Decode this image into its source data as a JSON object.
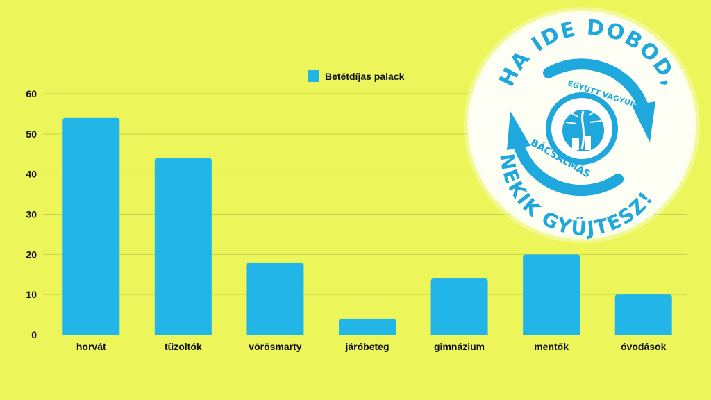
{
  "colors": {
    "background": "#ecf65a",
    "bar": "#22b6e8",
    "grid": "#c9d24a",
    "logo_blue": "#1fa8dd",
    "logo_white": "#ffffff"
  },
  "chart_data": {
    "type": "bar",
    "title": "",
    "xlabel": "",
    "ylabel": "",
    "categories": [
      "horvát",
      "tűzoltók",
      "vörösmarty",
      "járóbeteg",
      "gimnázium",
      "mentők",
      "óvodások"
    ],
    "series": [
      {
        "name": "Betétdíjas palack",
        "values": [
          54,
          44,
          18,
          4,
          14,
          20,
          10
        ]
      }
    ],
    "ylim": [
      0,
      60
    ],
    "yticks": [
      0,
      10,
      20,
      30,
      40,
      50,
      60
    ],
    "grid": true,
    "legend": "top-center"
  },
  "logo": {
    "arc_top": "HA IDE DOBOD,",
    "arc_bottom": "NEKIK GYŰJTESZ!",
    "inner_top": "EGYÜTT VAGYUNK",
    "inner_bottom": "BÁCSALMÁS",
    "icon": "recycle-arrows-icon"
  }
}
